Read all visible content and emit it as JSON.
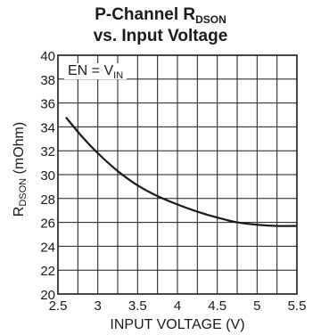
{
  "chart_data": {
    "type": "line",
    "title_main": "P-Channel R",
    "title_sub": "DSON",
    "title_line2": "vs. Input Voltage",
    "xlabel": "INPUT VOLTAGE (V)",
    "ylabel_main": "R",
    "ylabel_sub": "DSON",
    "ylabel_unit": " (mOhm)",
    "annotation_main": "EN = V",
    "annotation_sub": "IN",
    "xlim": [
      2.5,
      5.5
    ],
    "ylim": [
      20,
      40
    ],
    "x_ticks": [
      "2.5",
      "3",
      "3.5",
      "4",
      "4.5",
      "5",
      "5.5"
    ],
    "y_ticks": [
      "20",
      "22",
      "24",
      "26",
      "28",
      "30",
      "32",
      "34",
      "36",
      "38",
      "40"
    ],
    "x_minor_step": 0.25,
    "y_minor_step": 2,
    "grid": true,
    "series": [
      {
        "x": [
          2.6,
          2.8,
          3.0,
          3.25,
          3.5,
          3.75,
          4.0,
          4.25,
          4.5,
          4.75,
          5.0,
          5.25,
          5.5
        ],
        "y": [
          34.8,
          33.2,
          31.8,
          30.3,
          29.1,
          28.2,
          27.5,
          26.9,
          26.4,
          26.0,
          25.8,
          25.7,
          25.7
        ]
      }
    ]
  }
}
